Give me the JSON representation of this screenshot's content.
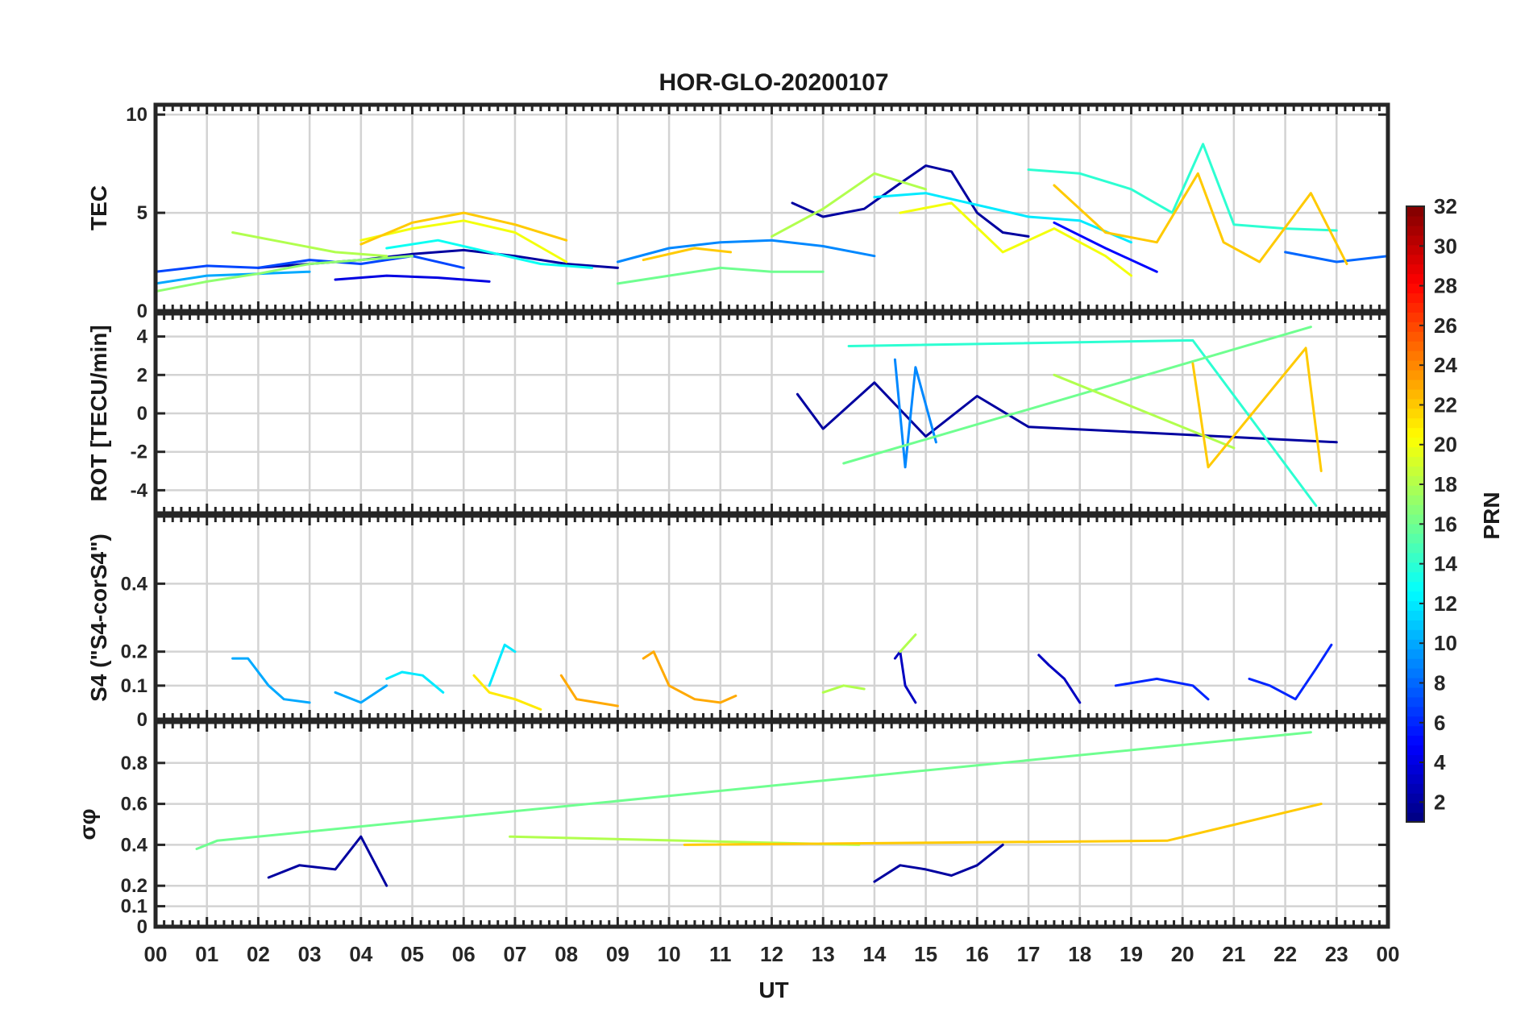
{
  "chart_data": {
    "type": "line",
    "title": "HOR-GLO-20200107",
    "xlabel": "UT",
    "x_tick_labels": [
      "00",
      "01",
      "02",
      "03",
      "04",
      "05",
      "06",
      "07",
      "08",
      "09",
      "10",
      "11",
      "12",
      "13",
      "14",
      "15",
      "16",
      "17",
      "18",
      "19",
      "20",
      "21",
      "22",
      "23",
      "00"
    ],
    "xlim": [
      0,
      24
    ],
    "grid": true,
    "panels": [
      {
        "name": "tec",
        "ylabel": "TEC",
        "ylim": [
          0,
          10.5
        ],
        "y_ticks": [
          0,
          5,
          10
        ],
        "y_tick_labels": [
          "0",
          "5",
          "10"
        ],
        "series": [
          {
            "prn": 2,
            "x": [
              2.0,
              3.0,
              4.0,
              5.0,
              6.0,
              7.0,
              8.0,
              9.0
            ],
            "y": [
              2.2,
              2.4,
              2.6,
              2.9,
              3.1,
              2.8,
              2.4,
              2.2
            ]
          },
          {
            "prn": 2,
            "x": [
              12.4,
              13.0,
              13.8,
              14.5,
              15.0,
              15.5,
              16.0,
              16.5,
              17.0
            ],
            "y": [
              5.5,
              4.8,
              5.2,
              6.5,
              7.4,
              7.1,
              5.0,
              4.0,
              3.8
            ]
          },
          {
            "prn": 4,
            "x": [
              3.5,
              4.5,
              5.5,
              6.5
            ],
            "y": [
              1.6,
              1.8,
              1.7,
              1.5
            ]
          },
          {
            "prn": 5,
            "x": [
              17.5,
              18.5,
              19.5
            ],
            "y": [
              4.5,
              3.2,
              2.0
            ]
          },
          {
            "prn": 7,
            "x": [
              0.0,
              1.0,
              2.0,
              3.0,
              4.0,
              5.0,
              6.0
            ],
            "y": [
              2.0,
              2.3,
              2.2,
              2.6,
              2.4,
              2.8,
              2.2
            ]
          },
          {
            "prn": 8,
            "x": [
              22.0,
              23.0,
              24.0
            ],
            "y": [
              3.0,
              2.5,
              2.8
            ]
          },
          {
            "prn": 9,
            "x": [
              9.0,
              10.0,
              11.0,
              12.0,
              13.0,
              14.0
            ],
            "y": [
              2.5,
              3.2,
              3.5,
              3.6,
              3.3,
              2.8
            ]
          },
          {
            "prn": 10,
            "x": [
              0.0,
              1.0,
              2.0,
              3.0
            ],
            "y": [
              1.4,
              1.8,
              1.9,
              2.0
            ]
          },
          {
            "prn": 12,
            "x": [
              14.0,
              15.0,
              16.0,
              17.0,
              18.0,
              19.0
            ],
            "y": [
              5.8,
              6.0,
              5.4,
              4.8,
              4.6,
              3.5
            ]
          },
          {
            "prn": 13,
            "x": [
              4.5,
              5.5,
              6.5,
              7.5,
              8.5
            ],
            "y": [
              3.2,
              3.6,
              3.0,
              2.4,
              2.2
            ]
          },
          {
            "prn": 14,
            "x": [
              17.0,
              18.0,
              19.0,
              19.8,
              20.4,
              21.0,
              22.0,
              23.0
            ],
            "y": [
              7.2,
              7.0,
              6.2,
              5.0,
              8.5,
              4.4,
              4.2,
              4.1
            ]
          },
          {
            "prn": 16,
            "x": [
              9.0,
              10.0,
              11.0,
              12.0,
              13.0
            ],
            "y": [
              1.4,
              1.8,
              2.2,
              2.0,
              2.0
            ]
          },
          {
            "prn": 17,
            "x": [
              0.0,
              1.0,
              2.0,
              3.0,
              4.0,
              5.0
            ],
            "y": [
              1.0,
              1.5,
              1.9,
              2.4,
              2.6,
              2.8
            ]
          },
          {
            "prn": 18,
            "x": [
              12.0,
              13.0,
              14.0,
              15.0
            ],
            "y": [
              3.8,
              5.2,
              7.0,
              6.2
            ]
          },
          {
            "prn": 18,
            "x": [
              1.5,
              2.5,
              3.5,
              4.5
            ],
            "y": [
              4.0,
              3.5,
              3.0,
              2.8
            ]
          },
          {
            "prn": 20,
            "x": [
              4.0,
              5.0,
              6.0,
              7.0,
              8.0
            ],
            "y": [
              3.6,
              4.2,
              4.6,
              4.0,
              2.5
            ]
          },
          {
            "prn": 20,
            "x": [
              14.5,
              15.5,
              16.5,
              17.5,
              18.5,
              19.0
            ],
            "y": [
              5.0,
              5.5,
              3.0,
              4.2,
              2.8,
              1.8
            ]
          },
          {
            "prn": 22,
            "x": [
              4.0,
              5.0,
              6.0,
              7.0,
              8.0
            ],
            "y": [
              3.4,
              4.5,
              5.0,
              4.4,
              3.6
            ]
          },
          {
            "prn": 22,
            "x": [
              9.5,
              10.5,
              11.2
            ],
            "y": [
              2.6,
              3.2,
              3.0
            ]
          },
          {
            "prn": 22,
            "x": [
              17.5,
              18.5,
              19.5,
              20.3,
              20.8,
              21.5,
              22.5,
              23.2
            ],
            "y": [
              6.4,
              4.0,
              3.5,
              7.0,
              3.5,
              2.5,
              6.0,
              2.4
            ]
          }
        ]
      },
      {
        "name": "rot",
        "ylabel": "ROT [TECU/min]",
        "ylim": [
          -5.2,
          5.2
        ],
        "y_ticks": [
          -4,
          -2,
          0,
          2,
          4
        ],
        "y_tick_labels": [
          "-4",
          "-2",
          "0",
          "2",
          "4"
        ],
        "series": [
          {
            "prn": 2,
            "x": [
              12.5,
              13.0,
              14.0,
              15.0,
              16.0,
              17.0,
              23.0
            ],
            "y": [
              1.0,
              -0.8,
              1.6,
              -1.2,
              0.9,
              -0.7,
              -1.5
            ]
          },
          {
            "prn": 9,
            "x": [
              14.4,
              14.6,
              14.8,
              15.2
            ],
            "y": [
              2.8,
              -2.8,
              2.4,
              -1.5
            ]
          },
          {
            "prn": 14,
            "x": [
              13.5,
              20.2,
              22.6
            ],
            "y": [
              3.5,
              3.8,
              -4.8
            ]
          },
          {
            "prn": 16,
            "x": [
              13.4,
              22.5
            ],
            "y": [
              -2.6,
              4.5
            ]
          },
          {
            "prn": 18,
            "x": [
              17.5,
              21.0
            ],
            "y": [
              2.0,
              -1.8
            ]
          },
          {
            "prn": 22,
            "x": [
              20.2,
              20.5,
              22.4,
              22.7
            ],
            "y": [
              2.6,
              -2.8,
              3.4,
              -3.0
            ]
          }
        ]
      },
      {
        "name": "s4",
        "ylabel": "S4 (\"S4-corS4\")",
        "ylim": [
          0,
          0.6
        ],
        "y_ticks": [
          0,
          0.1,
          0.2,
          0.4
        ],
        "y_tick_labels": [
          "0",
          "0.1",
          "0.2",
          "0.4"
        ],
        "series": [
          {
            "prn": 3,
            "x": [
              14.4,
              14.5,
              14.6,
              14.8
            ],
            "y": [
              0.18,
              0.2,
              0.1,
              0.05
            ]
          },
          {
            "prn": 3,
            "x": [
              17.2,
              17.4,
              17.7,
              18.0
            ],
            "y": [
              0.19,
              0.16,
              0.12,
              0.05
            ]
          },
          {
            "prn": 6,
            "x": [
              18.7,
              19.5,
              20.2,
              20.5
            ],
            "y": [
              0.1,
              0.12,
              0.1,
              0.06
            ]
          },
          {
            "prn": 6,
            "x": [
              21.3,
              21.7,
              22.2,
              22.6,
              22.9
            ],
            "y": [
              0.12,
              0.1,
              0.06,
              0.15,
              0.22
            ]
          },
          {
            "prn": 10,
            "x": [
              1.5,
              1.8,
              2.2,
              2.5,
              3.0
            ],
            "y": [
              0.18,
              0.18,
              0.1,
              0.06,
              0.05
            ]
          },
          {
            "prn": 10,
            "x": [
              3.5,
              4.0,
              4.5
            ],
            "y": [
              0.08,
              0.05,
              0.1
            ]
          },
          {
            "prn": 12,
            "x": [
              4.5,
              4.8,
              5.2,
              5.6
            ],
            "y": [
              0.12,
              0.14,
              0.13,
              0.08
            ]
          },
          {
            "prn": 12,
            "x": [
              6.5,
              6.8,
              7.0
            ],
            "y": [
              0.1,
              0.22,
              0.2
            ]
          },
          {
            "prn": 18,
            "x": [
              13.0,
              13.4,
              13.8
            ],
            "y": [
              0.08,
              0.1,
              0.09
            ]
          },
          {
            "prn": 18,
            "x": [
              14.5,
              14.8
            ],
            "y": [
              0.2,
              0.25
            ]
          },
          {
            "prn": 21,
            "x": [
              6.2,
              6.5,
              7.0,
              7.5
            ],
            "y": [
              0.13,
              0.08,
              0.06,
              0.03
            ]
          },
          {
            "prn": 23,
            "x": [
              7.9,
              8.2,
              8.6,
              9.0
            ],
            "y": [
              0.13,
              0.06,
              0.05,
              0.04
            ]
          },
          {
            "prn": 23,
            "x": [
              9.5,
              9.7,
              10.0,
              10.5,
              11.0,
              11.3
            ],
            "y": [
              0.18,
              0.2,
              0.1,
              0.06,
              0.05,
              0.07
            ]
          }
        ]
      },
      {
        "name": "sigma_phi",
        "ylabel": "σφ",
        "ylim": [
          0,
          1.0
        ],
        "y_ticks": [
          0,
          0.1,
          0.2,
          0.4,
          0.6,
          0.8
        ],
        "y_tick_labels": [
          "0",
          "0.1",
          "0.2",
          "0.4",
          "0.6",
          "0.8"
        ],
        "series": [
          {
            "prn": 2,
            "x": [
              2.2,
              2.8,
              3.5,
              4.0,
              4.5
            ],
            "y": [
              0.24,
              0.3,
              0.28,
              0.44,
              0.2
            ]
          },
          {
            "prn": 2,
            "x": [
              14.0,
              14.5,
              15.0,
              15.5,
              16.0,
              16.5
            ],
            "y": [
              0.22,
              0.3,
              0.28,
              0.25,
              0.3,
              0.4
            ]
          },
          {
            "prn": 16,
            "x": [
              0.8,
              1.2,
              22.5
            ],
            "y": [
              0.38,
              0.42,
              0.95
            ]
          },
          {
            "prn": 18,
            "x": [
              6.9,
              13.7
            ],
            "y": [
              0.44,
              0.4
            ]
          },
          {
            "prn": 22,
            "x": [
              10.3,
              19.7,
              22.7
            ],
            "y": [
              0.4,
              0.42,
              0.6
            ]
          }
        ]
      }
    ],
    "colorbar": {
      "label": "PRN",
      "colormap": "jet",
      "range": [
        1,
        32
      ],
      "ticks": [
        2,
        4,
        6,
        8,
        10,
        12,
        14,
        16,
        18,
        20,
        22,
        24,
        26,
        28,
        30,
        32
      ],
      "tick_labels": [
        "2",
        "4",
        "6",
        "8",
        "10",
        "12",
        "14",
        "16",
        "18",
        "20",
        "22",
        "24",
        "26",
        "28",
        "30",
        "32"
      ]
    }
  }
}
